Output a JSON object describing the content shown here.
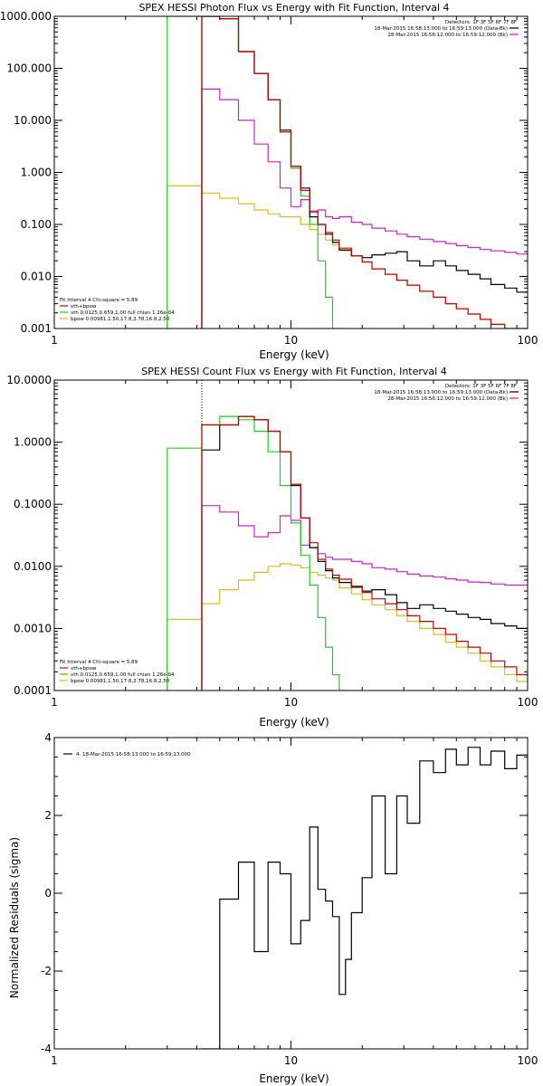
{
  "colors": {
    "data": "#000000",
    "total": "#cc0000",
    "vth": "#22cc22",
    "bpow": "#ddbb22",
    "bk": "#cc22cc"
  },
  "chart_data": [
    {
      "type": "line",
      "title": "SPEX HESSI Photon Flux vs Energy with Fit Function, Interval 4",
      "xlabel": "Energy (keV)",
      "ylabel": "",
      "xscale": "log",
      "yscale": "log",
      "xlim": [
        1,
        100
      ],
      "ylim": [
        0.001,
        1000
      ],
      "xticks": [
        {
          "v": 1,
          "t": "1"
        },
        {
          "v": 10,
          "t": "10"
        },
        {
          "v": 100,
          "t": "100"
        }
      ],
      "yticks": [
        {
          "v": 0.001,
          "t": "0.001"
        },
        {
          "v": 0.01,
          "t": "0.010"
        },
        {
          "v": 0.1,
          "t": "0.100"
        },
        {
          "v": 1,
          "t": "1.000"
        },
        {
          "v": 10,
          "t": "10.000"
        },
        {
          "v": 100,
          "t": "100.000"
        },
        {
          "v": 1000,
          "t": "1000.000"
        }
      ],
      "top_legend": {
        "detectors": "Detectors: 1F 3F 5F 6F 7F 8F",
        "lines": [
          "18-Mar-2015 16:58:13.000 to 16:59:13.000 (Data-Bk)",
          "28-Mar-2015 16:56:12.000 to 16:59:12.000 (Bk)"
        ],
        "colors": [
          "#000000",
          "#cc22cc"
        ]
      },
      "fit_legend": {
        "header": "Fit Interval  4    Chi-square = 5.89",
        "lines": [
          "vth+bpow",
          "vth 0.0125,0.659,1.00  full chian 1.26e-04",
          "bpow 0.00981,1.50,17.8,3.78,16.8,2.50"
        ],
        "colors": [
          "#cc0000",
          "#22cc22",
          "#ddbb22"
        ]
      },
      "vline": 4.2,
      "series": [
        {
          "key": "bk",
          "color": "#cc22cc",
          "x": [
            4.2,
            5.0,
            6.0,
            7.0,
            8.0,
            9.0,
            10.0,
            11.0,
            12.0,
            13.0,
            14.0,
            15.0,
            16.0,
            18.0,
            20.0,
            22.0,
            25.0,
            28.0,
            31.0,
            35.0,
            40.0,
            45.0,
            50.0,
            56.0,
            63.0,
            70.0,
            80.0,
            90.0,
            100.0
          ],
          "y": [
            40,
            25,
            10,
            3.5,
            1.6,
            0.5,
            0.22,
            0.3,
            0.17,
            0.19,
            0.14,
            0.13,
            0.14,
            0.11,
            0.1,
            0.085,
            0.075,
            0.065,
            0.058,
            0.052,
            0.047,
            0.043,
            0.039,
            0.036,
            0.033,
            0.031,
            0.029,
            0.027,
            0.026
          ]
        },
        {
          "key": "bpow",
          "color": "#ddbb22",
          "x": [
            3.0,
            4.2,
            5.0,
            6.0,
            7.0,
            8.0,
            9.0,
            10.0,
            11.0,
            12.0,
            13.0,
            14.0,
            15.0,
            16.0,
            18.0,
            20.0,
            22.0,
            25.0,
            28.0,
            31.0,
            35.0,
            40.0,
            45.0,
            50.0,
            56.0,
            63.0,
            70.0,
            80.0,
            90.0
          ],
          "y": [
            0.55,
            0.4,
            0.32,
            0.25,
            0.19,
            0.16,
            0.14,
            0.14,
            0.1,
            0.08,
            0.065,
            0.05,
            0.04,
            0.033,
            0.025,
            0.019,
            0.014,
            0.011,
            0.0085,
            0.0068,
            0.0052,
            0.004,
            0.003,
            0.0024,
            0.0019,
            0.0015,
            0.0012,
            0.001,
            0.001
          ]
        },
        {
          "key": "vth",
          "color": "#22cc22",
          "x": [
            3.0,
            4.2,
            5.0,
            6.0,
            7.0,
            8.0,
            9.0,
            10.0,
            11.0,
            12.0,
            13.0,
            14.0,
            15.0
          ],
          "y": [
            1000,
            1000,
            900,
            210,
            80,
            25,
            6,
            1.2,
            0.35,
            0.1,
            0.02,
            0.004,
            0.001
          ]
        },
        {
          "key": "data",
          "color": "#000000",
          "x": [
            4.2,
            5.0,
            6.0,
            7.0,
            8.0,
            9.0,
            10.0,
            11.0,
            12.0,
            13.0,
            14.0,
            15.0,
            16.0,
            18.0,
            20.0,
            22.0,
            25.0,
            28.0,
            31.0,
            35.0,
            40.0,
            45.0,
            50.0,
            56.0,
            63.0,
            70.0,
            80.0,
            90.0,
            100.0
          ],
          "y": [
            1000,
            900,
            210,
            80,
            25,
            6.5,
            1.3,
            0.5,
            0.14,
            0.1,
            0.065,
            0.045,
            0.032,
            0.025,
            0.023,
            0.026,
            0.028,
            0.03,
            0.02,
            0.016,
            0.02,
            0.016,
            0.013,
            0.011,
            0.009,
            0.007,
            0.006,
            0.005,
            0.005
          ]
        },
        {
          "key": "total",
          "color": "#cc0000",
          "x": [
            4.2,
            5.0,
            6.0,
            7.0,
            8.0,
            9.0,
            10.0,
            11.0,
            12.0,
            13.0,
            14.0,
            15.0,
            16.0,
            18.0,
            20.0,
            22.0,
            25.0,
            28.0,
            31.0,
            35.0,
            40.0,
            45.0,
            50.0,
            56.0,
            63.0,
            70.0,
            80.0,
            90.0
          ],
          "y": [
            1000,
            900,
            210,
            80,
            25,
            6,
            1.3,
            0.45,
            0.18,
            0.1,
            0.07,
            0.05,
            0.035,
            0.025,
            0.019,
            0.014,
            0.011,
            0.0085,
            0.0068,
            0.0052,
            0.004,
            0.003,
            0.0024,
            0.0019,
            0.0015,
            0.0012,
            0.001,
            0.001
          ]
        }
      ]
    },
    {
      "type": "line",
      "title": "SPEX HESSI Count Flux vs Energy with Fit Function, Interval 4",
      "xlabel": "Energy (keV)",
      "ylabel": "",
      "xscale": "log",
      "yscale": "log",
      "xlim": [
        1,
        100
      ],
      "ylim": [
        0.0001,
        10
      ],
      "xticks": [
        {
          "v": 1,
          "t": "1"
        },
        {
          "v": 10,
          "t": "10"
        },
        {
          "v": 100,
          "t": "100"
        }
      ],
      "yticks": [
        {
          "v": 0.0001,
          "t": "0.0001"
        },
        {
          "v": 0.001,
          "t": "0.0010"
        },
        {
          "v": 0.01,
          "t": "0.0100"
        },
        {
          "v": 0.1,
          "t": "0.1000"
        },
        {
          "v": 1,
          "t": "1.0000"
        },
        {
          "v": 10,
          "t": "10.0000"
        }
      ],
      "top_legend": {
        "detectors": "Detectors: 1F 3F 5F 6F 7F 8F",
        "lines": [
          "18-Mar-2015 16:58:13.000 to 16:59:13.000 (Data-Bk)",
          "28-Mar-2015 16:56:12.000 to 16:59:12.000 (Bk)"
        ],
        "colors": [
          "#000000",
          "#cc22cc"
        ]
      },
      "fit_legend": {
        "header": "Fit Interval  4    Chi-square = 5.89",
        "lines": [
          "vth+bpow",
          "vth 0.0125,0.659,1.00  full chian 1.26e-04",
          "bpow 0.00981,1.50,17.8,3.78,16.8,2.50"
        ],
        "colors": [
          "#cc0000",
          "#22cc22",
          "#ddbb22"
        ]
      },
      "vline": 4.2,
      "series": [
        {
          "key": "bk",
          "color": "#cc22cc",
          "x": [
            4.2,
            5.0,
            6.0,
            7.0,
            8.0,
            9.0,
            10.0,
            11.0,
            12.0,
            13.0,
            14.0,
            15.0,
            16.0,
            18.0,
            20.0,
            22.0,
            25.0,
            28.0,
            31.0,
            35.0,
            40.0,
            45.0,
            50.0,
            56.0,
            63.0,
            70.0,
            80.0,
            90.0,
            100.0
          ],
          "y": [
            0.095,
            0.075,
            0.045,
            0.03,
            0.035,
            0.065,
            0.055,
            0.022,
            0.02,
            0.016,
            0.014,
            0.013,
            0.013,
            0.012,
            0.011,
            0.0095,
            0.009,
            0.0082,
            0.0075,
            0.007,
            0.0067,
            0.0063,
            0.006,
            0.0056,
            0.0055,
            0.0052,
            0.005,
            0.005,
            0.005
          ]
        },
        {
          "key": "bpow",
          "color": "#ddbb22",
          "x": [
            3.0,
            4.2,
            5.0,
            6.0,
            7.0,
            8.0,
            9.0,
            10.0,
            11.0,
            12.0,
            13.0,
            14.0,
            15.0,
            16.0,
            18.0,
            20.0,
            22.0,
            25.0,
            28.0,
            31.0,
            35.0,
            40.0,
            45.0,
            50.0,
            56.0,
            63.0,
            70.0,
            80.0,
            90.0
          ],
          "y": [
            0.0014,
            0.0025,
            0.0042,
            0.006,
            0.008,
            0.01,
            0.011,
            0.0105,
            0.0095,
            0.008,
            0.0072,
            0.0065,
            0.006,
            0.0045,
            0.0036,
            0.0029,
            0.0024,
            0.002,
            0.0016,
            0.0013,
            0.001,
            0.0008,
            0.0006,
            0.0005,
            0.0004,
            0.0003,
            0.00024,
            0.00018,
            0.00014
          ]
        },
        {
          "key": "vth",
          "color": "#22cc22",
          "x": [
            3.0,
            4.2,
            5.0,
            6.0,
            7.0,
            8.0,
            9.0,
            10.0,
            11.0,
            12.0,
            13.0,
            14.0,
            15.0,
            16.0
          ],
          "y": [
            0.8,
            1.9,
            2.6,
            2.3,
            1.5,
            0.7,
            0.2,
            0.05,
            0.015,
            0.005,
            0.0015,
            0.0005,
            0.00018,
            0.0001
          ]
        },
        {
          "key": "data",
          "color": "#000000",
          "x": [
            4.2,
            5.0,
            6.0,
            7.0,
            8.0,
            9.0,
            10.0,
            11.0,
            12.0,
            13.0,
            14.0,
            15.0,
            16.0,
            18.0,
            20.0,
            22.0,
            25.0,
            28.0,
            31.0,
            35.0,
            40.0,
            45.0,
            50.0,
            56.0,
            63.0,
            70.0,
            80.0,
            90.0,
            100.0
          ],
          "y": [
            0.75,
            1.9,
            2.6,
            2.3,
            1.5,
            0.7,
            0.2,
            0.06,
            0.02,
            0.012,
            0.0085,
            0.0065,
            0.0055,
            0.0046,
            0.004,
            0.0042,
            0.0035,
            0.0026,
            0.0021,
            0.0024,
            0.0021,
            0.0019,
            0.0017,
            0.0015,
            0.0014,
            0.0012,
            0.0011,
            0.001,
            0.001
          ]
        },
        {
          "key": "total",
          "color": "#cc0000",
          "x": [
            4.2,
            5.0,
            6.0,
            7.0,
            8.0,
            9.0,
            10.0,
            11.0,
            12.0,
            13.0,
            14.0,
            15.0,
            16.0,
            18.0,
            20.0,
            22.0,
            25.0,
            28.0,
            31.0,
            35.0,
            40.0,
            45.0,
            50.0,
            56.0,
            63.0,
            70.0,
            80.0,
            90.0,
            100.0
          ],
          "y": [
            1.9,
            1.9,
            2.6,
            2.3,
            1.5,
            0.7,
            0.21,
            0.06,
            0.024,
            0.013,
            0.009,
            0.0072,
            0.0062,
            0.0048,
            0.0038,
            0.003,
            0.0025,
            0.002,
            0.0016,
            0.0013,
            0.001,
            0.0008,
            0.00062,
            0.0005,
            0.0004,
            0.0003,
            0.00024,
            0.00018,
            0.00014
          ]
        }
      ]
    },
    {
      "type": "line",
      "title": "",
      "xlabel": "Energy (keV)",
      "ylabel": "Normalized Residuals (sigma)",
      "xscale": "log",
      "yscale": "linear",
      "xlim": [
        1,
        100
      ],
      "ylim": [
        -4,
        4
      ],
      "xticks": [
        {
          "v": 1,
          "t": "1"
        },
        {
          "v": 10,
          "t": "10"
        },
        {
          "v": 100,
          "t": "100"
        }
      ],
      "yticks": [
        {
          "v": -4,
          "t": "-4"
        },
        {
          "v": -2,
          "t": "-2"
        },
        {
          "v": 0,
          "t": "0"
        },
        {
          "v": 2,
          "t": "2"
        },
        {
          "v": 4,
          "t": "4"
        }
      ],
      "residual_legend": "4. 18-Mar-2015 16:58:13.000 to 16:59:13.000",
      "series": [
        {
          "key": "residuals",
          "color": "#000000",
          "x": [
            4.2,
            5.0,
            6.0,
            7.0,
            8.0,
            9.0,
            10.0,
            11.0,
            12.0,
            13.0,
            14.0,
            15.0,
            16.0,
            17.0,
            18.0,
            20.0,
            22.0,
            25.0,
            28.0,
            31.0,
            35.0,
            40.0,
            45.0,
            50.0,
            56.0,
            63.0,
            70.0,
            80.0,
            90.0,
            100.0
          ],
          "y": [
            -4,
            -0.15,
            0.8,
            -1.5,
            0.8,
            0.5,
            -1.3,
            -0.7,
            1.7,
            0.1,
            -0.2,
            -0.6,
            -2.6,
            -1.7,
            -0.5,
            0.4,
            2.5,
            0.5,
            2.5,
            1.8,
            3.4,
            3.1,
            3.7,
            3.3,
            3.75,
            3.3,
            3.65,
            3.2,
            3.55,
            3.2
          ]
        }
      ]
    }
  ]
}
